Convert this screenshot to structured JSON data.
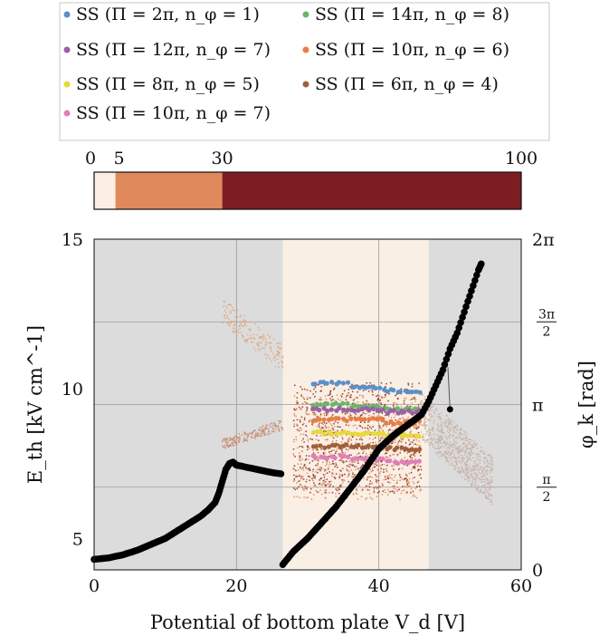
{
  "chart_data": {
    "type": "scatter",
    "xlabel": "Potential of bottom plate V_d [V]",
    "ylabel_left": "E_th [kV cm^-1]",
    "ylabel_right": "φ_k [rad]",
    "xlim": [
      0,
      60
    ],
    "ylim_left": [
      3.95,
      15
    ],
    "ylim_right": [
      0,
      6.2832
    ],
    "x_ticks": [
      "0",
      "20",
      "40",
      "60"
    ],
    "y_left_ticks": [
      "5",
      "10",
      "15"
    ],
    "y_right_ticks": [
      "0",
      "π/2",
      "π",
      "3π/2",
      "2π"
    ],
    "colorbar": {
      "ticks": [
        "0",
        "5",
        "30",
        "100"
      ],
      "segments": [
        {
          "from": 0,
          "to": 5,
          "color": "#fbeee2"
        },
        {
          "from": 5,
          "to": 30,
          "color": "#e08a5c"
        },
        {
          "from": 30,
          "to": 100,
          "color": "#7d1d22"
        }
      ]
    },
    "legend": [
      {
        "label": "SS (Π = 2π, n_φ = 1)",
        "color": "#5b8fc9"
      },
      {
        "label": "SS (Π = 14π, n_φ = 8)",
        "color": "#6ab56a"
      },
      {
        "label": "SS (Π = 12π, n_φ = 7)",
        "color": "#9b5fa8"
      },
      {
        "label": "SS (Π = 10π, n_φ = 6)",
        "color": "#e67e48"
      },
      {
        "label": "SS (Π = 8π, n_φ = 5)",
        "color": "#e6d93a"
      },
      {
        "label": "SS (Π = 6π, n_φ = 4)",
        "color": "#a0603c"
      },
      {
        "label": "SS (Π = 10π, n_φ = 7)",
        "color": "#e07fb8"
      }
    ],
    "background_regions": [
      {
        "x_from": 0,
        "x_to": 26.5,
        "color": "#dcdcdc"
      },
      {
        "x_from": 26.5,
        "x_to": 47,
        "color": "#faefe4"
      },
      {
        "x_from": 47,
        "x_to": 60,
        "color": "#dcdcdc"
      }
    ],
    "threshold_series": {
      "name": "E_th",
      "color": "#000000",
      "x": [
        0,
        2,
        4,
        6,
        8,
        10,
        12,
        14,
        15,
        16,
        17,
        17.5,
        18,
        18.5,
        19,
        19.5,
        20,
        21,
        22,
        23,
        24,
        25,
        26.5
      ],
      "y": [
        4.3,
        4.35,
        4.45,
        4.6,
        4.8,
        5.0,
        5.3,
        5.6,
        5.75,
        5.95,
        6.2,
        6.5,
        6.9,
        7.3,
        7.5,
        7.55,
        7.45,
        7.4,
        7.35,
        7.3,
        7.25,
        7.2,
        7.15
      ]
    },
    "phase_series": {
      "name": "φ_k",
      "color": "#000000",
      "x": [
        26.5,
        28,
        30,
        32,
        34,
        36,
        38,
        40,
        42,
        44,
        46,
        47,
        48,
        49,
        50,
        51,
        52,
        53,
        54,
        54.5
      ],
      "y_rad": [
        0.1,
        0.35,
        0.6,
        0.9,
        1.2,
        1.55,
        1.9,
        2.3,
        2.55,
        2.75,
        2.95,
        3.2,
        3.5,
        3.8,
        4.2,
        4.5,
        4.9,
        5.3,
        5.7,
        5.85
      ]
    },
    "phase_outliers": [
      {
        "x": 50,
        "y_rad": 3.05
      }
    ],
    "ss_groups": [
      {
        "x_range": [
          30.5,
          36
        ],
        "y_rad": [
          3.55,
          3.15,
          3.05,
          2.85,
          2.6,
          2.35,
          2.15
        ]
      },
      {
        "x_range": [
          36,
          41
        ],
        "y_rad": [
          3.45,
          3.1,
          3.05,
          2.85,
          2.6,
          2.35,
          2.1
        ]
      },
      {
        "x_range": [
          41,
          46
        ],
        "y_rad": [
          3.4,
          3.05,
          3.0,
          2.8,
          2.55,
          2.3,
          2.05
        ]
      }
    ],
    "scatter_clusters": [
      {
        "x": [
          18,
          26.5
        ],
        "y": [
          10.8,
          12.8
        ],
        "color": "#e3a67e"
      },
      {
        "x": [
          18,
          26.5
        ],
        "y": [
          8.1,
          8.8
        ],
        "color": "#c78d73"
      },
      {
        "x": [
          28,
          46
        ],
        "y": [
          6.5,
          10.2
        ],
        "color": "#8b2a24"
      },
      {
        "x": [
          28,
          46
        ],
        "y": [
          6.3,
          9.8
        ],
        "color": "#d98858"
      },
      {
        "x": [
          46,
          56
        ],
        "y": [
          6.3,
          9.5
        ],
        "color": "#c7b2a7"
      }
    ]
  }
}
